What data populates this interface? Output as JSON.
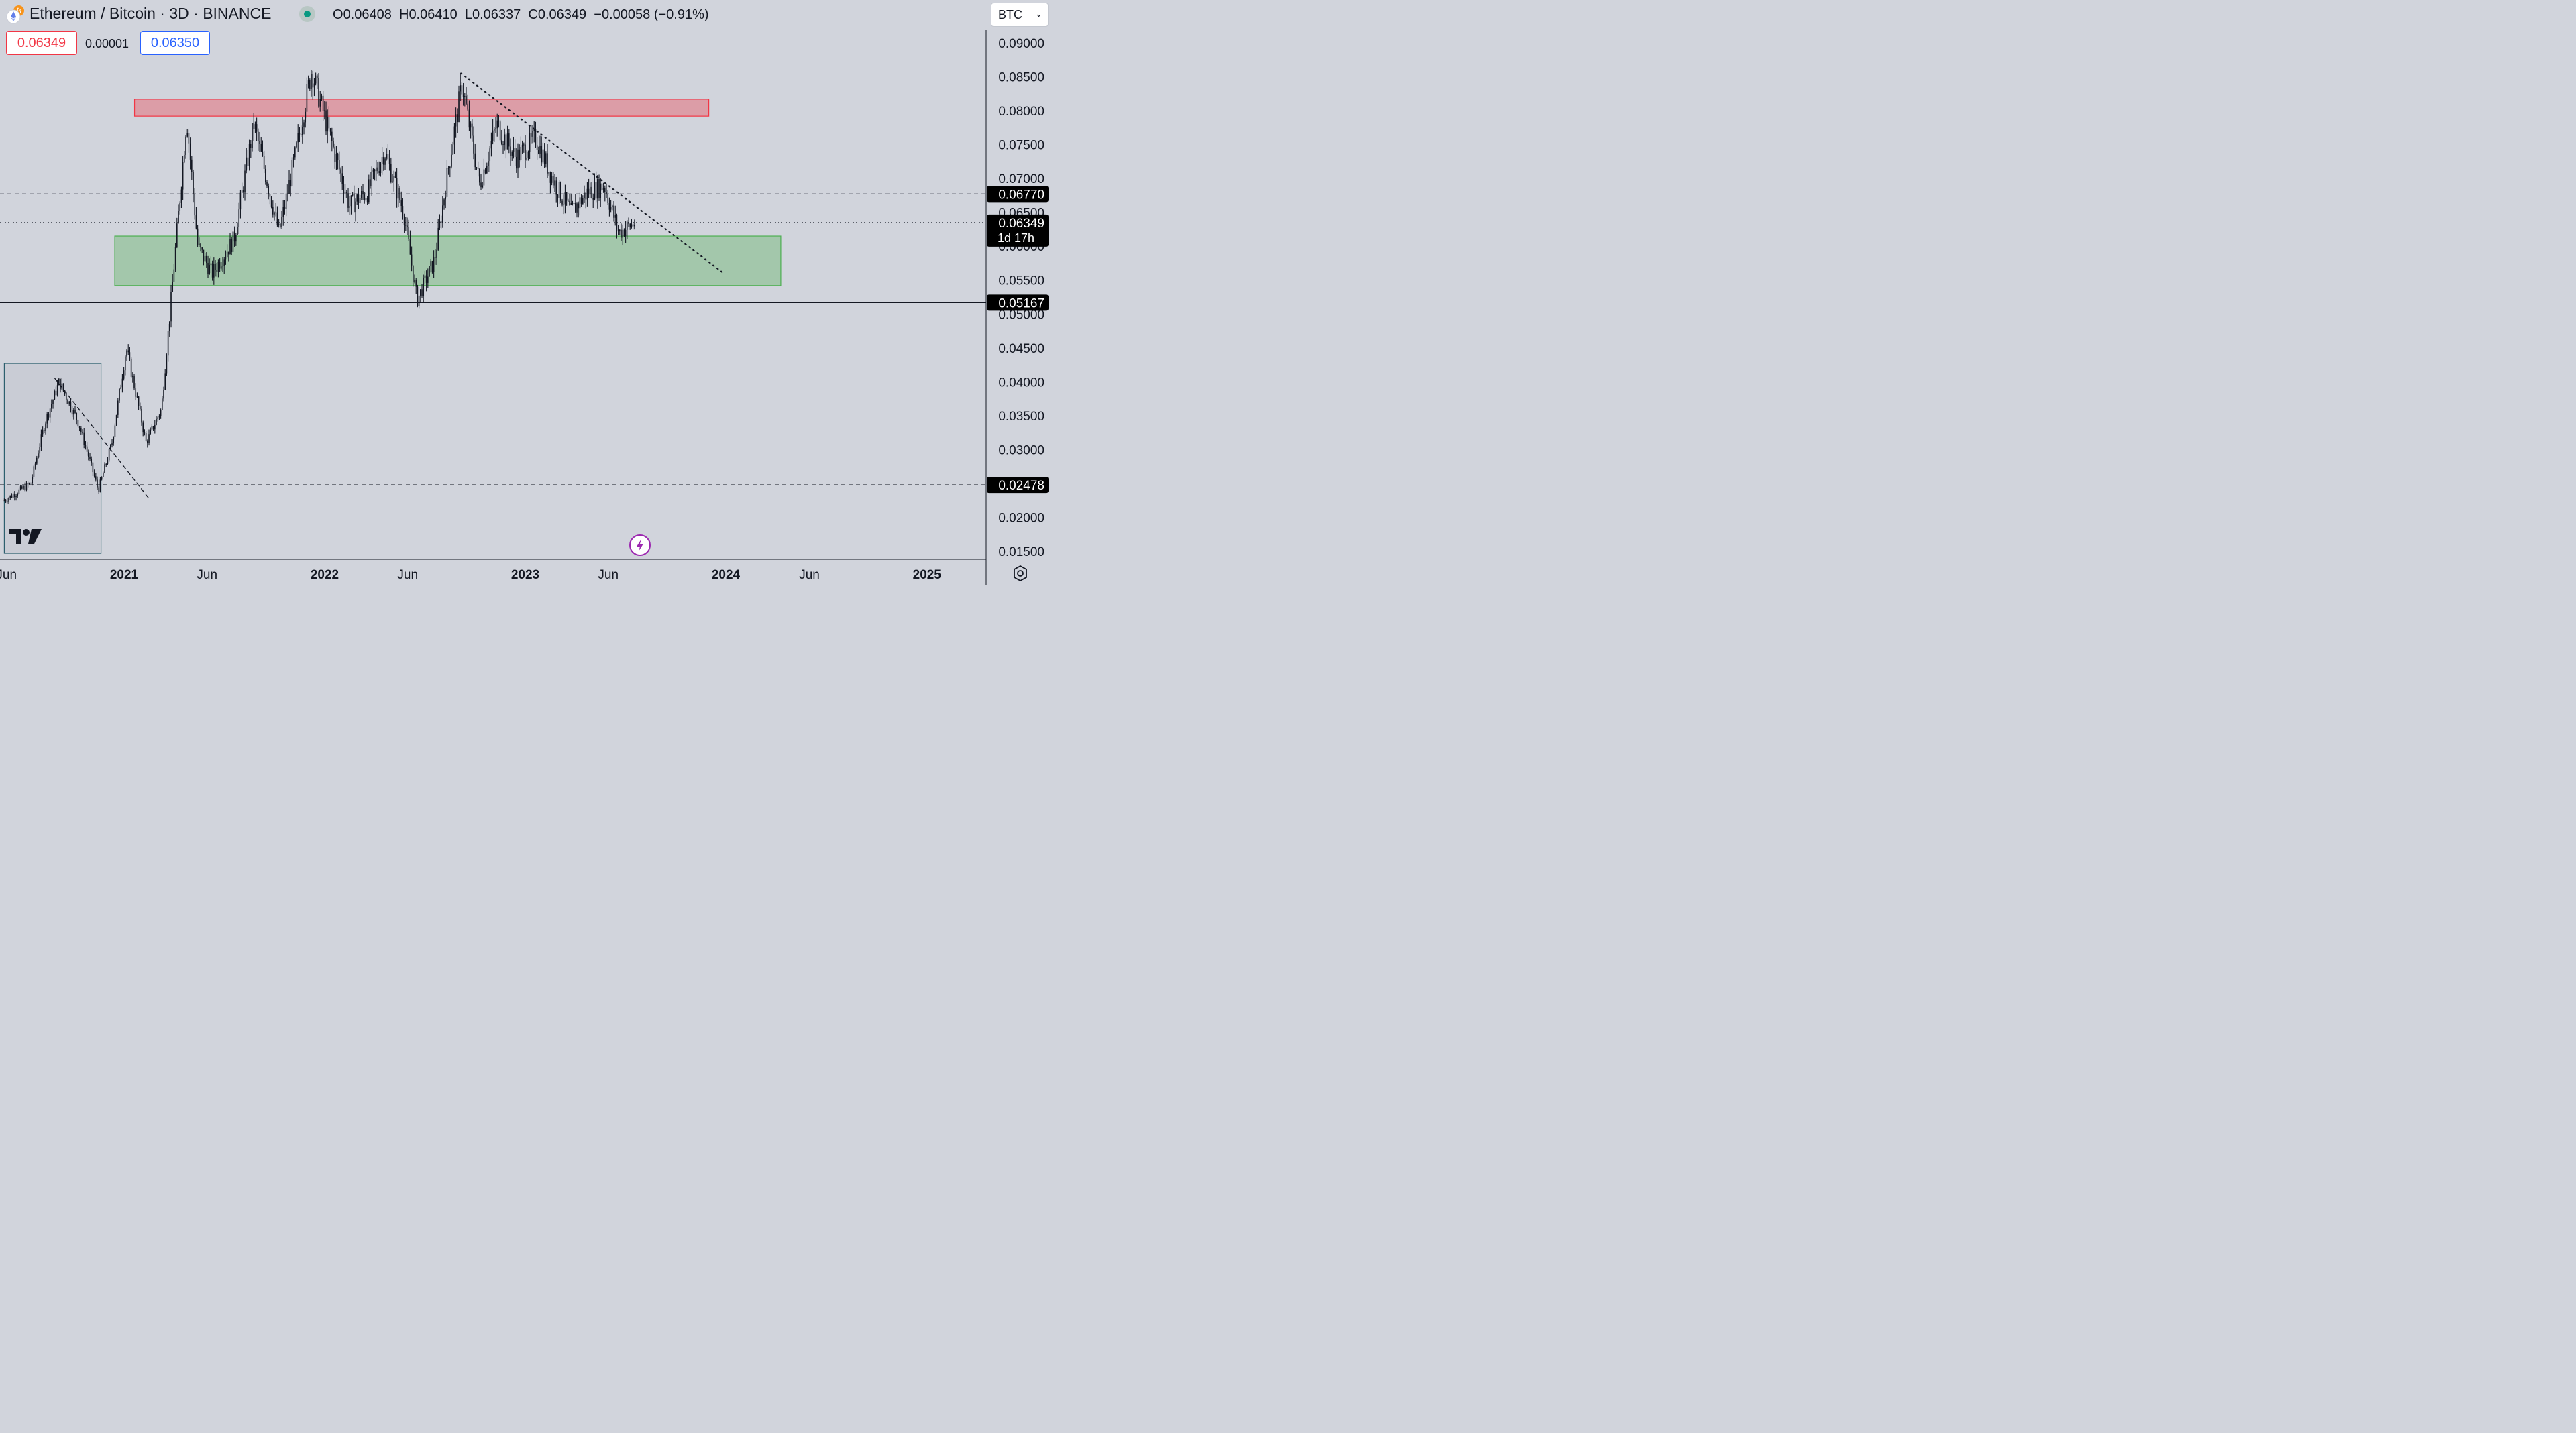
{
  "header": {
    "title": "Ethereum / Bitcoin · 3D · BINANCE",
    "ohlc": {
      "open_label": "O",
      "open": "0.06408",
      "high_label": "H",
      "high": "0.06410",
      "low_label": "L",
      "low": "0.06337",
      "close_label": "C",
      "close": "0.06349",
      "change": "−0.00058 (−0.91%)"
    },
    "currency": "BTC",
    "coin_icon": "ethereum-bitcoin-icon"
  },
  "trade": {
    "sell_price": "0.06349",
    "spread": "0.00001",
    "buy_price": "0.06350"
  },
  "colors": {
    "background": "#d1d4dc",
    "resistance_zone": "#f23645",
    "support_zone": "#4caf50",
    "sell": "#f23645",
    "buy": "#2962ff",
    "status_live": "#089981",
    "candles": "#131722"
  },
  "chart_data": {
    "type": "bar",
    "title": "Ethereum / Bitcoin · 3D · BINANCE",
    "ylim": [
      0.0135,
      0.091
    ],
    "y_ticks": [
      "0.09000",
      "0.08500",
      "0.08000",
      "0.07500",
      "0.07000",
      "0.06500",
      "0.06000",
      "0.05500",
      "0.05000",
      "0.04500",
      "0.04000",
      "0.03500",
      "0.03000",
      "0.02000",
      "0.01500"
    ],
    "x_ticks": [
      {
        "label": "Jun",
        "date": "2020-06-01",
        "bold": false
      },
      {
        "label": "2021",
        "date": "2021-01-01",
        "bold": true
      },
      {
        "label": "Jun",
        "date": "2021-06-01",
        "bold": false
      },
      {
        "label": "2022",
        "date": "2022-01-01",
        "bold": true
      },
      {
        "label": "Jun",
        "date": "2022-06-01",
        "bold": false
      },
      {
        "label": "2023",
        "date": "2023-01-01",
        "bold": true
      },
      {
        "label": "Jun",
        "date": "2023-06-01",
        "bold": false
      },
      {
        "label": "2024",
        "date": "2024-01-01",
        "bold": true
      },
      {
        "label": "Jun",
        "date": "2024-06-01",
        "bold": false
      },
      {
        "label": "2025",
        "date": "2025-01-01",
        "bold": true
      }
    ],
    "price_path": [
      {
        "date": "2020-05-28",
        "price": 0.0225
      },
      {
        "date": "2020-07-15",
        "price": 0.025
      },
      {
        "date": "2020-08-10",
        "price": 0.034
      },
      {
        "date": "2020-09-05",
        "price": 0.04
      },
      {
        "date": "2020-10-10",
        "price": 0.034
      },
      {
        "date": "2020-11-15",
        "price": 0.024
      },
      {
        "date": "2020-12-10",
        "price": 0.031
      },
      {
        "date": "2021-01-05",
        "price": 0.045
      },
      {
        "date": "2021-02-10",
        "price": 0.031
      },
      {
        "date": "2021-03-10",
        "price": 0.036
      },
      {
        "date": "2021-04-05",
        "price": 0.06
      },
      {
        "date": "2021-04-25",
        "price": 0.079
      },
      {
        "date": "2021-05-15",
        "price": 0.06
      },
      {
        "date": "2021-06-10",
        "price": 0.056
      },
      {
        "date": "2021-07-20",
        "price": 0.061
      },
      {
        "date": "2021-08-25",
        "price": 0.078
      },
      {
        "date": "2021-10-10",
        "price": 0.062
      },
      {
        "date": "2021-11-10",
        "price": 0.074
      },
      {
        "date": "2021-12-08",
        "price": 0.086
      },
      {
        "date": "2022-01-15",
        "price": 0.075
      },
      {
        "date": "2022-02-15",
        "price": 0.066
      },
      {
        "date": "2022-03-20",
        "price": 0.068
      },
      {
        "date": "2022-04-20",
        "price": 0.074
      },
      {
        "date": "2022-05-25",
        "price": 0.065
      },
      {
        "date": "2022-06-18",
        "price": 0.052
      },
      {
        "date": "2022-07-20",
        "price": 0.058
      },
      {
        "date": "2022-08-15",
        "price": 0.072
      },
      {
        "date": "2022-09-08",
        "price": 0.084
      },
      {
        "date": "2022-10-10",
        "price": 0.069
      },
      {
        "date": "2022-11-10",
        "price": 0.078
      },
      {
        "date": "2022-12-15",
        "price": 0.073
      },
      {
        "date": "2023-01-20",
        "price": 0.076
      },
      {
        "date": "2023-02-25",
        "price": 0.069
      },
      {
        "date": "2023-03-25",
        "price": 0.065
      },
      {
        "date": "2023-04-25",
        "price": 0.068
      },
      {
        "date": "2023-05-25",
        "price": 0.069
      },
      {
        "date": "2023-06-20",
        "price": 0.062
      },
      {
        "date": "2023-07-20",
        "price": 0.0635
      }
    ],
    "zones": [
      {
        "name": "resistance",
        "y_from": 0.0792,
        "y_to": 0.0817,
        "x_from": "2021-01-20",
        "x_to": "2023-12-01",
        "color": "#f23645"
      },
      {
        "name": "support",
        "y_from": 0.0542,
        "y_to": 0.0615,
        "x_from": "2020-12-15",
        "x_to": "2024-04-10",
        "color": "#4caf50"
      },
      {
        "name": "range",
        "y_from": 0.0147,
        "y_to": 0.0427,
        "x_from": "2020-05-28",
        "x_to": "2020-11-20",
        "color": "#b2b5be"
      }
    ],
    "horizontal_lines": [
      {
        "y": 0.0677,
        "label": "0.06770",
        "style": "dashed"
      },
      {
        "y": 0.05167,
        "label": "0.05167",
        "style": "solid"
      },
      {
        "y": 0.02478,
        "label": "0.02478",
        "style": "dashed"
      }
    ],
    "last_price": {
      "y": 0.06349,
      "label": "0.06349",
      "countdown": "1d 17h"
    },
    "trendlines": [
      {
        "from": {
          "date": "2022-09-06",
          "y": 0.0855
        },
        "to": {
          "date": "2023-12-25",
          "y": 0.0562
        },
        "style": "dotted"
      },
      {
        "from": {
          "date": "2020-08-28",
          "y": 0.0405
        },
        "to": {
          "date": "2021-02-15",
          "y": 0.0228
        },
        "style": "dashed"
      }
    ]
  },
  "footer": {
    "logo": "tradingview-logo",
    "alert_icon": "lightning-icon",
    "settings_icon": "gear-icon"
  }
}
